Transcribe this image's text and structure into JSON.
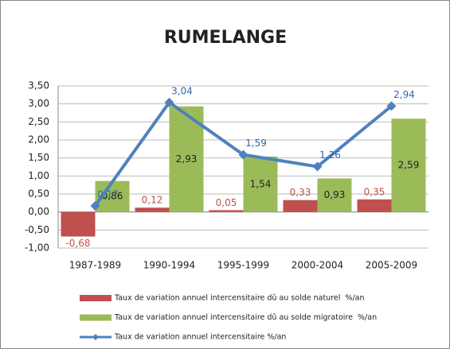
{
  "chart_data": {
    "type": "bar",
    "title": "RUMELANGE",
    "categories": [
      "1987-1989",
      "1990-1994",
      "1995-1999",
      "2000-2004",
      "2005-2009"
    ],
    "series": [
      {
        "name": "Taux de variation annuel intercensitaire dû au solde naturel  %/an",
        "color": "#c0504d",
        "type": "bar",
        "values": [
          -0.68,
          0.12,
          0.05,
          0.33,
          0.35
        ],
        "value_labels": [
          "-0,68",
          "0,12",
          "0,05",
          "0,33",
          "0,35"
        ]
      },
      {
        "name": "Taux de variation annuel intercensitaire dû au solde migratoire  %/an",
        "color": "#9bbb59",
        "type": "bar",
        "values": [
          0.86,
          2.93,
          1.54,
          0.93,
          2.59
        ],
        "value_labels": [
          "0,86",
          "2,93",
          "1,54",
          "0,93",
          "2,59"
        ]
      },
      {
        "name": "Taux de variation annuel intercensitaire %/an",
        "color": "#4f81bd",
        "type": "line",
        "values": [
          0.17,
          3.04,
          1.59,
          1.26,
          2.94
        ],
        "value_labels": [
          "0,17",
          "3,04",
          "1,59",
          "1,26",
          "2,94"
        ]
      }
    ],
    "ylim": [
      -1,
      3.5
    ],
    "yticks": [
      {
        "value": -1,
        "label": "-1,00"
      },
      {
        "value": -0.5,
        "label": "-0,50"
      },
      {
        "value": 0,
        "label": "0,00"
      },
      {
        "value": 0.5,
        "label": "0,50"
      },
      {
        "value": 1,
        "label": "1,00"
      },
      {
        "value": 1.5,
        "label": "1,50"
      },
      {
        "value": 2,
        "label": "2,00"
      },
      {
        "value": 2.5,
        "label": "2,50"
      },
      {
        "value": 3,
        "label": "3,00"
      },
      {
        "value": 3.5,
        "label": "3,50"
      }
    ],
    "grid": true
  }
}
